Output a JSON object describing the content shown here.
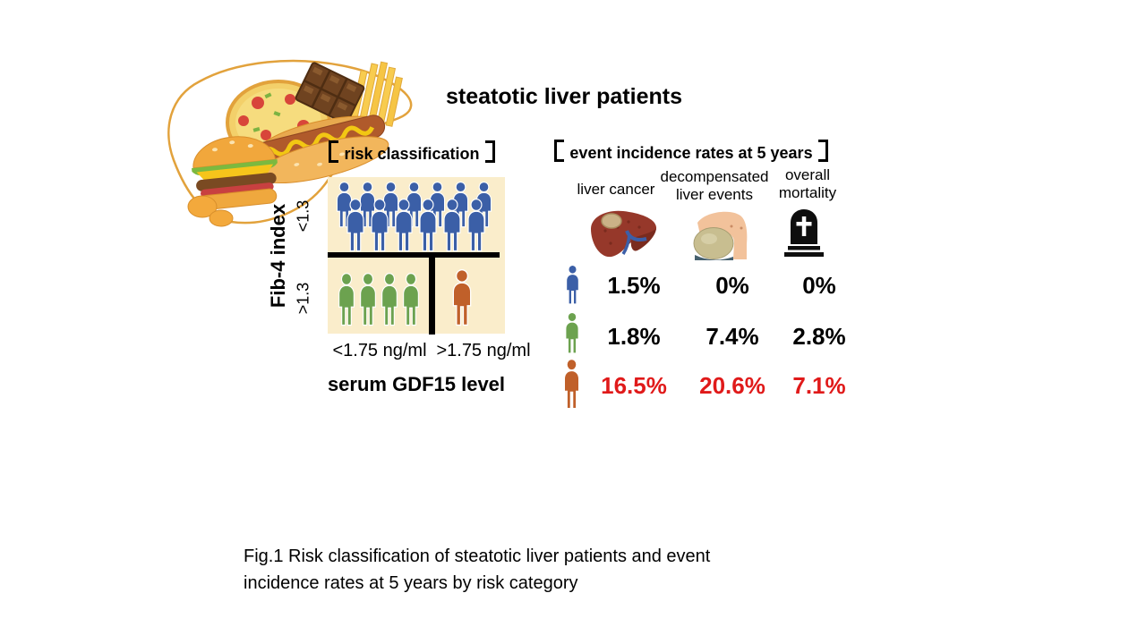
{
  "title": "steatotic liver patients",
  "risk_panel": {
    "heading": "【 risk classification】",
    "heading_text": "risk classification",
    "y_axis_label": "Fib-4 index",
    "y_ticks": [
      "<1.3",
      ">1.3"
    ],
    "x_ticks": [
      "<1.75 ng/ml",
      ">1.75 ng/ml"
    ],
    "x_axis_label": "serum GDF15 level",
    "panel_bg": "#FAEDCB",
    "divider_color": "#000000",
    "groups": [
      {
        "name": "fib4-under-1.3",
        "color": "#3B5FA7",
        "rows": [
          {
            "count": 7,
            "w": 25,
            "h": 52,
            "x0": 2,
            "dx": 26,
            "y": 0
          },
          {
            "count": 6,
            "w": 28,
            "h": 60,
            "x0": 13,
            "dx": 27,
            "y": 19
          }
        ]
      },
      {
        "name": "fib4-over-1.3-gdf15-under-1.75",
        "color": "#6CA24F",
        "rows": [
          {
            "count": 4,
            "w": 26,
            "h": 60,
            "x0": 0,
            "dx": 24,
            "y": 2
          }
        ]
      },
      {
        "name": "fib4-over-1.3-gdf15-over-1.75",
        "color": "#C0602A",
        "rows": [
          {
            "count": 1,
            "w": 30,
            "h": 64,
            "x0": 0,
            "dx": 0,
            "y": 0
          }
        ]
      }
    ]
  },
  "events_panel": {
    "heading": "【 event incidence rates at 5 years 】",
    "heading_text": "event incidence rates at 5 years",
    "columns": [
      {
        "label_lines": [
          "liver cancer"
        ],
        "icon": "liver-cancer-icon"
      },
      {
        "label_lines": [
          "decompensated",
          "liver events"
        ],
        "icon": "decompensated-liver-icon"
      },
      {
        "label_lines": [
          "overall",
          "mortality"
        ],
        "icon": "tombstone-icon"
      }
    ],
    "rows": [
      {
        "color": "#3B5FA7",
        "values": [
          "1.5%",
          "0%",
          "0%"
        ],
        "value_color": "#000000"
      },
      {
        "color": "#6CA24F",
        "values": [
          "1.8%",
          "7.4%",
          "2.8%"
        ],
        "value_color": "#000000"
      },
      {
        "color": "#C0602A",
        "values": [
          "16.5%",
          "20.6%",
          "7.1%"
        ],
        "value_color": "#E01A1A"
      }
    ]
  },
  "caption": {
    "lines": [
      "Fig.1 Risk classification of steatotic liver patients and event",
      "incidence rates at 5 years by risk category"
    ]
  },
  "chart_data": {
    "type": "table",
    "title": "event incidence rates at 5 years",
    "row_groups": [
      "Fib-4 index <1.3",
      "Fib-4 index >1.3, serum GDF15 <1.75 ng/ml",
      "Fib-4 index >1.3, serum GDF15 >1.75 ng/ml"
    ],
    "columns": [
      "liver cancer",
      "decompensated liver events",
      "overall mortality"
    ],
    "values_percent": [
      [
        1.5,
        0,
        0
      ],
      [
        1.8,
        7.4,
        2.8
      ],
      [
        16.5,
        20.6,
        7.1
      ]
    ],
    "highlight_row": 2,
    "highlight_color": "#E01A1A"
  }
}
